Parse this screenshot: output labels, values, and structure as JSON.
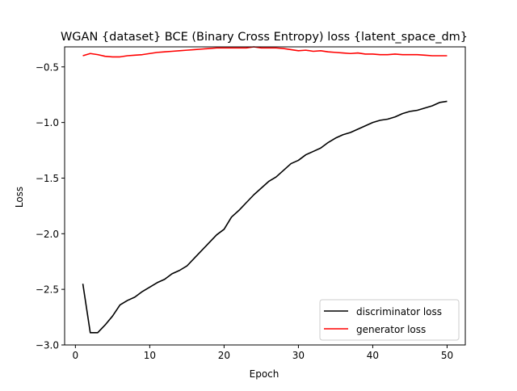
{
  "chart_data": {
    "type": "line",
    "title": "WGAN {dataset} BCE (Binary Cross Entropy) loss {latent_space_dm}",
    "xlabel": "Epoch",
    "ylabel": "Loss",
    "xlim": [
      -1.45,
      52.45
    ],
    "ylim": [
      -3.0,
      -0.32
    ],
    "xticks": [
      0,
      10,
      20,
      30,
      40,
      50
    ],
    "xtick_labels": [
      "0",
      "10",
      "20",
      "30",
      "40",
      "50"
    ],
    "yticks": [
      -3.0,
      -2.5,
      -2.0,
      -1.5,
      -1.0,
      -0.5
    ],
    "ytick_labels": [
      "−3.0",
      "−2.5",
      "−2.0",
      "−1.5",
      "−1.0",
      "−0.5"
    ],
    "grid": false,
    "legend_position": "lower-right",
    "x": [
      1,
      2,
      3,
      4,
      5,
      6,
      7,
      8,
      9,
      10,
      11,
      12,
      13,
      14,
      15,
      16,
      17,
      18,
      19,
      20,
      21,
      22,
      23,
      24,
      25,
      26,
      27,
      28,
      29,
      30,
      31,
      32,
      33,
      34,
      35,
      36,
      37,
      38,
      39,
      40,
      41,
      42,
      43,
      44,
      45,
      46,
      47,
      48,
      49,
      50
    ],
    "series": [
      {
        "name": "discriminator loss",
        "color": "#000000",
        "values": [
          -2.45,
          -2.89,
          -2.89,
          -2.82,
          -2.74,
          -2.64,
          -2.6,
          -2.57,
          -2.52,
          -2.48,
          -2.44,
          -2.41,
          -2.36,
          -2.33,
          -2.29,
          -2.22,
          -2.15,
          -2.08,
          -2.01,
          -1.96,
          -1.85,
          -1.79,
          -1.72,
          -1.65,
          -1.59,
          -1.53,
          -1.49,
          -1.43,
          -1.37,
          -1.34,
          -1.29,
          -1.26,
          -1.23,
          -1.18,
          -1.14,
          -1.11,
          -1.09,
          -1.06,
          -1.03,
          -1.0,
          -0.98,
          -0.97,
          -0.95,
          -0.92,
          -0.9,
          -0.89,
          -0.87,
          -0.85,
          -0.82,
          -0.81
        ]
      },
      {
        "name": "generator loss",
        "color": "#ff0000",
        "values": [
          -0.4,
          -0.38,
          -0.39,
          -0.405,
          -0.41,
          -0.41,
          -0.4,
          -0.395,
          -0.39,
          -0.38,
          -0.37,
          -0.365,
          -0.36,
          -0.355,
          -0.35,
          -0.345,
          -0.34,
          -0.335,
          -0.33,
          -0.33,
          -0.33,
          -0.33,
          -0.33,
          -0.32,
          -0.33,
          -0.33,
          -0.33,
          -0.335,
          -0.345,
          -0.355,
          -0.35,
          -0.36,
          -0.355,
          -0.365,
          -0.37,
          -0.375,
          -0.38,
          -0.375,
          -0.385,
          -0.385,
          -0.39,
          -0.39,
          -0.385,
          -0.39,
          -0.39,
          -0.39,
          -0.395,
          -0.4,
          -0.4,
          -0.4
        ]
      }
    ]
  }
}
